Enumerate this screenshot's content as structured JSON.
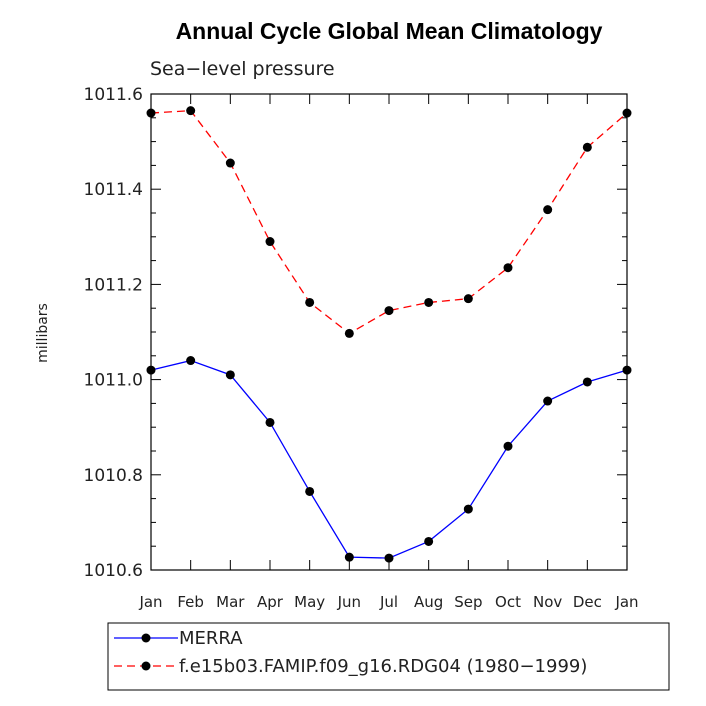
{
  "chart_data": {
    "type": "line",
    "title": "Annual Cycle Global Mean Climatology",
    "subtitle": "Sea−level pressure",
    "ylabel": "millibars",
    "xlabel": "",
    "categories": [
      "Jan",
      "Feb",
      "Mar",
      "Apr",
      "May",
      "Jun",
      "Jul",
      "Aug",
      "Sep",
      "Oct",
      "Nov",
      "Dec",
      "Jan"
    ],
    "ylim": [
      1010.6,
      1011.6
    ],
    "yticks": [
      1010.6,
      1010.8,
      1011.0,
      1011.2,
      1011.4,
      1011.6
    ],
    "ytick_labels": [
      "1010.6",
      "1010.8",
      "1011.0",
      "1011.2",
      "1011.4",
      "1011.6"
    ],
    "legend_position": "bottom",
    "series": [
      {
        "name": "MERRA",
        "color": "#0000ff",
        "dash": "solid",
        "values": [
          1011.02,
          1011.04,
          1011.01,
          1010.91,
          1010.765,
          1010.627,
          1010.625,
          1010.66,
          1010.728,
          1010.86,
          1010.955,
          1010.995,
          1011.02
        ]
      },
      {
        "name": "f.e15b03.FAMIP.f09_g16.RDG04 (1980−1999)",
        "color": "#ff0000",
        "dash": "dashed",
        "values": [
          1011.56,
          1011.565,
          1011.455,
          1011.29,
          1011.162,
          1011.097,
          1011.145,
          1011.162,
          1011.17,
          1011.235,
          1011.357,
          1011.488,
          1011.56
        ]
      }
    ]
  }
}
